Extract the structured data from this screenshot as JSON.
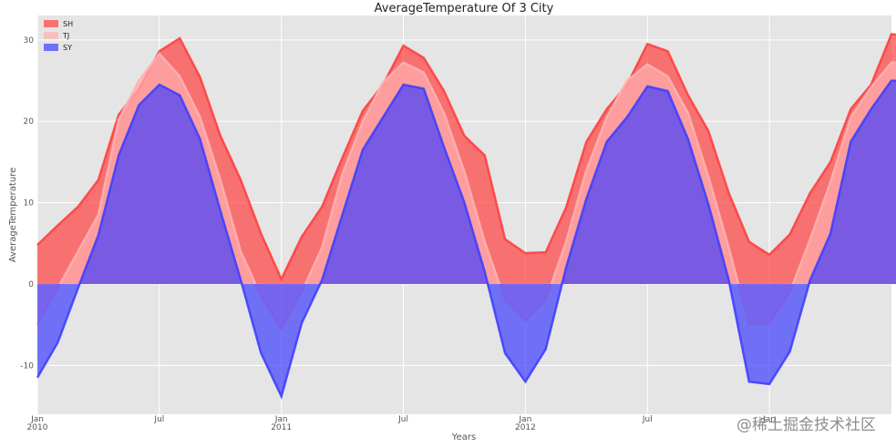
{
  "chart_data": {
    "type": "area",
    "title": "AverageTemperature Of 3 City",
    "xlabel": "Years",
    "ylabel": "AverageTemperature",
    "ylim": [
      -16,
      33
    ],
    "yticks": [
      -10,
      0,
      10,
      20,
      30
    ],
    "x_index_range": [
      0,
      42
    ],
    "xticks": [
      {
        "i": 0,
        "line1": "Jan",
        "line2": "2010"
      },
      {
        "i": 6,
        "line1": "Jul",
        "line2": ""
      },
      {
        "i": 12,
        "line1": "Jan",
        "line2": "2011"
      },
      {
        "i": 18,
        "line1": "Jul",
        "line2": ""
      },
      {
        "i": 24,
        "line1": "Jan",
        "line2": "2012"
      },
      {
        "i": 30,
        "line1": "Jul",
        "line2": ""
      },
      {
        "i": 36,
        "line1": "Jan",
        "line2": ""
      }
    ],
    "grid": true,
    "legend_position": "top-left",
    "series": [
      {
        "name": "SH",
        "color": "#ff4040",
        "alpha": 0.7,
        "values": [
          4.8,
          7.2,
          9.5,
          12.8,
          20.8,
          24.0,
          28.6,
          30.2,
          25.4,
          18.2,
          12.8,
          6.2,
          0.6,
          5.8,
          9.5,
          15.5,
          21.3,
          24.5,
          29.3,
          27.8,
          23.7,
          18.2,
          15.8,
          5.5,
          3.8,
          3.9,
          9.4,
          17.5,
          21.5,
          24.5,
          29.5,
          28.6,
          23.2,
          18.8,
          11.2,
          5.2,
          3.6,
          6.1,
          11.2,
          15.0,
          21.5,
          24.5,
          30.7,
          30.5
        ]
      },
      {
        "name": "TJ",
        "color": "#ffb0b0",
        "alpha": 0.7,
        "values": [
          -5.0,
          -0.5,
          4.0,
          8.5,
          20.2,
          25.0,
          28.3,
          25.5,
          20.5,
          12.8,
          4.0,
          -1.5,
          -5.5,
          -1.0,
          4.5,
          13.5,
          20.0,
          24.8,
          27.2,
          26.0,
          21.0,
          13.8,
          5.2,
          -2.0,
          -4.5,
          -2.0,
          5.2,
          14.0,
          20.5,
          25.0,
          27.0,
          25.5,
          21.0,
          13.2,
          4.5,
          -5.0,
          -4.8,
          -1.0,
          5.5,
          12.5,
          20.5,
          24.2,
          27.2,
          27.2
        ]
      },
      {
        "name": "SY",
        "color": "#3f3fff",
        "alpha": 0.7,
        "values": [
          -11.5,
          -7.2,
          -0.5,
          6.0,
          15.8,
          22.0,
          24.5,
          23.2,
          17.8,
          9.0,
          0.5,
          -8.5,
          -13.8,
          -4.8,
          0.5,
          8.5,
          16.5,
          20.5,
          24.5,
          24.0,
          16.8,
          10.0,
          1.5,
          -8.5,
          -12.0,
          -8.0,
          2.0,
          10.5,
          17.5,
          20.5,
          24.3,
          23.7,
          17.8,
          9.8,
          0.5,
          -12.0,
          -12.3,
          -8.3,
          0.5,
          6.2,
          17.5,
          21.5,
          25.0,
          24.9
        ]
      }
    ]
  },
  "watermark": "@稀土掘金技术社区"
}
